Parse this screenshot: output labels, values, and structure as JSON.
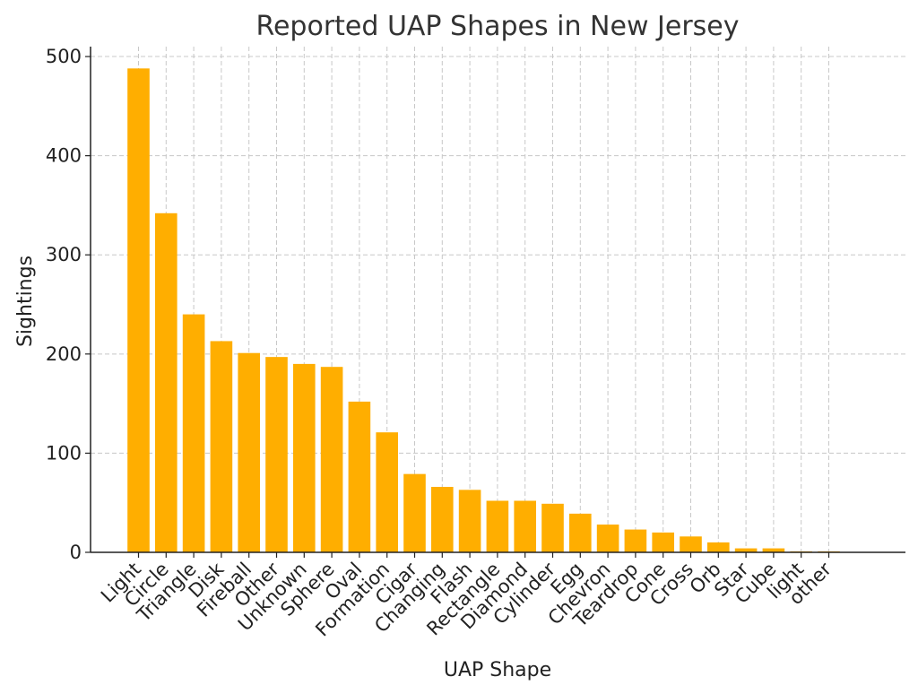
{
  "chart_data": {
    "type": "bar",
    "title": "Reported UAP Shapes in New Jersey",
    "xlabel": "UAP Shape",
    "ylabel": "Sightings",
    "ylim": [
      0,
      510
    ],
    "yticks": [
      0,
      100,
      200,
      300,
      400,
      500
    ],
    "grid": true,
    "bar_color": "#FFAE00",
    "categories": [
      "Light",
      "Circle",
      "Triangle",
      "Disk",
      "Fireball",
      "Other",
      "Unknown",
      "Sphere",
      "Oval",
      "Formation",
      "Cigar",
      "Changing",
      "Flash",
      "Rectangle",
      "Diamond",
      "Cylinder",
      "Egg",
      "Chevron",
      "Teardrop",
      "Cone",
      "Cross",
      "Orb",
      "Star",
      "Cube",
      "light",
      "other"
    ],
    "values": [
      488,
      342,
      240,
      213,
      201,
      197,
      190,
      187,
      152,
      121,
      79,
      66,
      63,
      52,
      52,
      49,
      39,
      28,
      23,
      20,
      16,
      10,
      4,
      4,
      1,
      1
    ]
  }
}
